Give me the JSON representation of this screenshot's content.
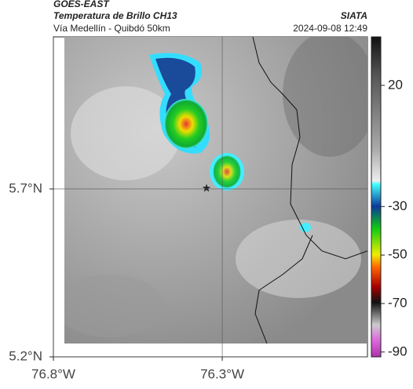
{
  "header": {
    "source": "GOES-EAST",
    "title": "Temperatura de Brillo CH13",
    "agency": "SIATA",
    "route": "Vía Medellín - Quibdó 50km",
    "timestamp": "2024-09-08 12:49"
  },
  "map": {
    "xlim": [
      -76.8,
      -75.87
    ],
    "ylim": [
      5.2,
      6.153
    ],
    "xticks": [
      {
        "value": -76.8,
        "label": "76.8°W"
      },
      {
        "value": -76.3,
        "label": "76.3°W"
      }
    ],
    "yticks": [
      {
        "value": 5.2,
        "label": "5.2°N"
      },
      {
        "value": 5.7,
        "label": "5.7°N"
      }
    ],
    "grid": true
  },
  "colorbar": {
    "lim": [
      -92,
      40
    ],
    "ticks": [
      20,
      -30,
      -50,
      -70,
      -90
    ]
  }
}
